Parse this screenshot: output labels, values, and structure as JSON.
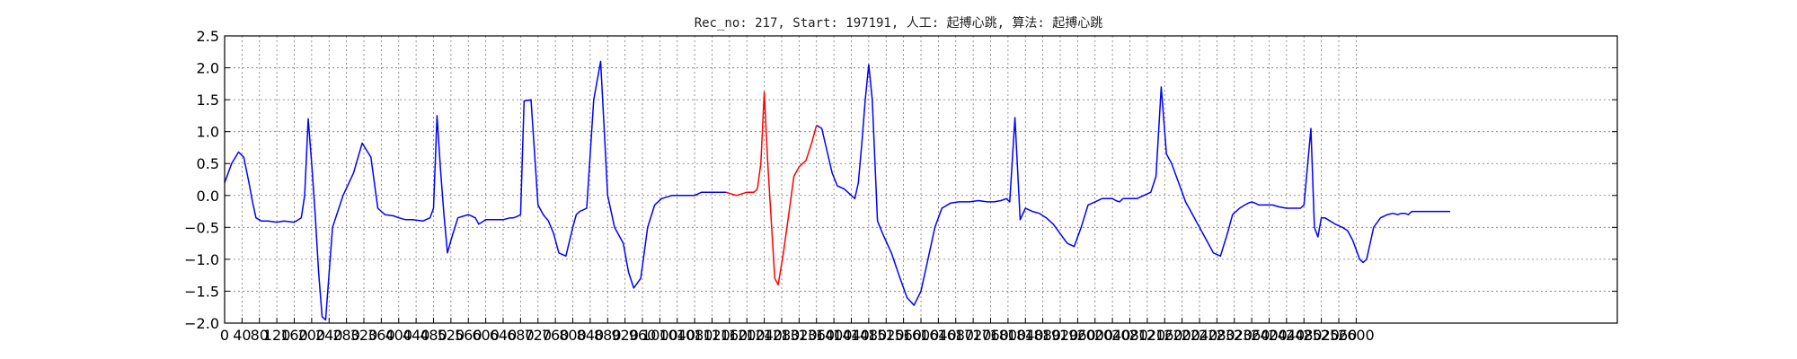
{
  "chart_data": {
    "type": "line",
    "title": "Rec_no: 217, Start: 197191, 人工: 起搏心跳, 算法: 起搏心跳",
    "xlabel": "",
    "ylabel": "",
    "xlim": [
      0,
      8000
    ],
    "ylim": [
      -2.0,
      2.5
    ],
    "grid": true,
    "x_tick_labels": [
      "0",
      "40",
      "80",
      "120",
      "160",
      "200",
      "240",
      "280",
      "320",
      "360",
      "400",
      "440",
      "480",
      "520",
      "560",
      "600",
      "640",
      "680",
      "720",
      "760",
      "800",
      "840",
      "880",
      "920",
      "960",
      "1000",
      "1040",
      "1080",
      "1120",
      "1160",
      "1200",
      "1240",
      "1280",
      "1320",
      "1360",
      "1400",
      "1440",
      "1480",
      "1520",
      "1560",
      "1600",
      "1640",
      "1680",
      "1720",
      "1760",
      "1800",
      "1840",
      "1880",
      "1920",
      "1960",
      "2000",
      "2040",
      "2080",
      "2120",
      "2160",
      "2200",
      "2240",
      "2280",
      "2320",
      "2360",
      "2400",
      "2440",
      "2480",
      "2520",
      "2560",
      "2600"
    ],
    "y_ticks": [
      -2.0,
      -1.5,
      -1.0,
      -0.5,
      0.0,
      0.5,
      1.0,
      1.5,
      2.0,
      2.5
    ],
    "y_tick_labels": [
      "−2.0",
      "−1.5",
      "−1.0",
      "−0.5",
      "0.0",
      "0.5",
      "1.0",
      "1.5",
      "2.0",
      "2.5"
    ],
    "series": [
      {
        "color": "#0000ff",
        "x": [
          0,
          40,
          80,
          110,
          140,
          160,
          180,
          210,
          250,
          300,
          340,
          400,
          440,
          460,
          480,
          500,
          520,
          540,
          560,
          580,
          620,
          680,
          740,
          790,
          840,
          880,
          920,
          970,
          1000,
          1040,
          1080,
          1140,
          1180,
          1200,
          1220,
          1240,
          1260,
          1280,
          1300,
          1340,
          1400,
          1440,
          1460,
          1500,
          1560,
          1600,
          1640,
          1660,
          1680,
          1700,
          1720,
          1760,
          1800,
          1830,
          1860,
          1890,
          1920,
          1960,
          2000,
          2020,
          2040,
          2080,
          2120,
          2160,
          2200,
          2240,
          2290,
          2320,
          2350,
          2390,
          2430,
          2470,
          2510,
          2570,
          2620,
          2660,
          2700,
          2740,
          2780,
          2820,
          2860,
          2880
        ],
        "y": [
          0.2,
          0.5,
          0.68,
          0.6,
          0.2,
          -0.1,
          -0.35,
          -0.4,
          -0.4,
          -0.42,
          -0.4,
          -0.42,
          -0.35,
          0.0,
          1.2,
          0.5,
          -0.3,
          -1.2,
          -1.9,
          -1.95,
          -0.5,
          0.0,
          0.35,
          0.82,
          0.6,
          -0.2,
          -0.3,
          -0.32,
          -0.35,
          -0.38,
          -0.38,
          -0.4,
          -0.35,
          -0.2,
          1.25,
          0.4,
          -0.3,
          -0.9,
          -0.7,
          -0.35,
          -0.3,
          -0.35,
          -0.45,
          -0.38,
          -0.38,
          -0.38,
          -0.35,
          -0.35,
          -0.33,
          -0.3,
          1.48,
          1.5,
          -0.15,
          -0.3,
          -0.4,
          -0.6,
          -0.9,
          -0.95,
          -0.5,
          -0.3,
          -0.25,
          -0.2,
          1.5,
          2.1,
          0.0,
          -0.5,
          -0.75,
          -1.2,
          -1.45,
          -1.3,
          -0.5,
          -0.15,
          -0.05,
          0.0,
          0.0,
          0.0,
          0.0,
          0.05,
          0.05,
          0.05,
          0.05,
          0.05
        ]
      },
      {
        "color": "#ff0000",
        "x": [
          2880,
          2940,
          3000,
          3040,
          3060,
          3080,
          3100,
          3120,
          3140,
          3160,
          3180,
          3210,
          3240,
          3270,
          3300,
          3340,
          3370,
          3400
        ],
        "y": [
          0.05,
          0.0,
          0.05,
          0.05,
          0.1,
          0.5,
          1.62,
          0.5,
          -0.4,
          -1.3,
          -1.4,
          -0.9,
          -0.3,
          0.3,
          0.45,
          0.55,
          0.8,
          1.1
        ]
      },
      {
        "color": "#0000ff",
        "x": [
          3400,
          3430,
          3460,
          3490,
          3520,
          3560,
          3600,
          3620,
          3640,
          3660,
          3680,
          3700,
          3720,
          3750,
          3780,
          3830,
          3880,
          3920,
          3960,
          4000,
          4040,
          4080,
          4120,
          4170,
          4220,
          4280,
          4330,
          4380,
          4420,
          4460,
          4490,
          4510,
          4540,
          4570,
          4600,
          4640,
          4680,
          4720,
          4760,
          4800,
          4840,
          4880,
          4920,
          4960,
          5000,
          5040,
          5080,
          5100,
          5120,
          5140,
          5160,
          5200,
          5240,
          5280,
          5320,
          5350,
          5380,
          5410,
          5440,
          5480,
          5520,
          5560,
          5600,
          5640,
          5680,
          5720,
          5760,
          5790,
          5830,
          5860,
          5880,
          5900,
          5920,
          5940,
          5980,
          6020,
          6060,
          6100,
          6140,
          6180,
          6200,
          6240,
          6260,
          6280,
          6300,
          6320,
          6350,
          6380,
          6420,
          6450,
          6480,
          6500,
          6520,
          6540,
          6560,
          6580,
          6600,
          6640,
          6680,
          6710,
          6740,
          6760,
          6780,
          6800,
          6820,
          6860,
          6900,
          6940,
          6980,
          7000,
          7020,
          7040
        ],
        "y": [
          1.1,
          1.05,
          0.7,
          0.35,
          0.15,
          0.1,
          0.0,
          -0.05,
          0.2,
          0.8,
          1.5,
          2.05,
          1.5,
          -0.4,
          -0.6,
          -0.9,
          -1.3,
          -1.6,
          -1.72,
          -1.5,
          -1.0,
          -0.5,
          -0.2,
          -0.12,
          -0.1,
          -0.1,
          -0.08,
          -0.1,
          -0.1,
          -0.08,
          -0.05,
          -0.1,
          1.22,
          -0.38,
          -0.2,
          -0.25,
          -0.28,
          -0.35,
          -0.45,
          -0.6,
          -0.75,
          -0.8,
          -0.5,
          -0.15,
          -0.1,
          -0.05,
          -0.05,
          -0.05,
          -0.08,
          -0.1,
          -0.05,
          -0.05,
          -0.05,
          0.0,
          0.05,
          0.3,
          1.7,
          0.65,
          0.5,
          0.2,
          -0.1,
          -0.3,
          -0.5,
          -0.7,
          -0.9,
          -0.95,
          -0.6,
          -0.3,
          -0.2,
          -0.15,
          -0.12,
          -0.1,
          -0.12,
          -0.15,
          -0.15,
          -0.15,
          -0.18,
          -0.2,
          -0.2,
          -0.2,
          -0.15,
          1.05,
          -0.5,
          -0.65,
          -0.35,
          -0.35,
          -0.4,
          -0.45,
          -0.5,
          -0.55,
          -0.7,
          -0.85,
          -1.0,
          -1.05,
          -1.0,
          -0.75,
          -0.5,
          -0.35,
          -0.3,
          -0.28,
          -0.3,
          -0.28,
          -0.28,
          -0.3,
          -0.25,
          -0.25,
          -0.25,
          -0.25,
          -0.25,
          -0.25,
          -0.25,
          -0.25
        ]
      }
    ]
  }
}
